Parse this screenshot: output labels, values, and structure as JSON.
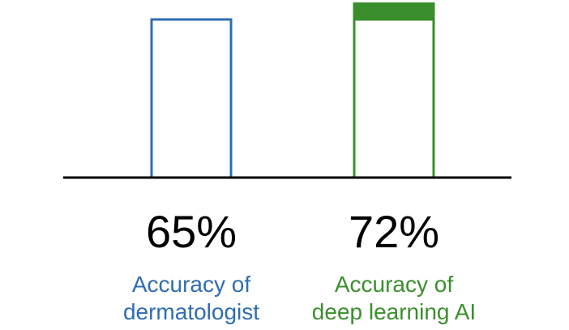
{
  "chart_data": {
    "type": "bar",
    "categories": [
      [
        "Accuracy of",
        "dermatologist"
      ],
      [
        "Accuracy of",
        "deep learning AI"
      ]
    ],
    "values": [
      65,
      72
    ],
    "value_labels": [
      "65%",
      "72%"
    ],
    "ylim": [
      0,
      72
    ],
    "grid": false,
    "colors": {
      "dermatologist": "#2f6db0",
      "ai": "#3a8f2c",
      "axis": "#000000",
      "value_text": "#000000"
    },
    "legend": "none"
  }
}
